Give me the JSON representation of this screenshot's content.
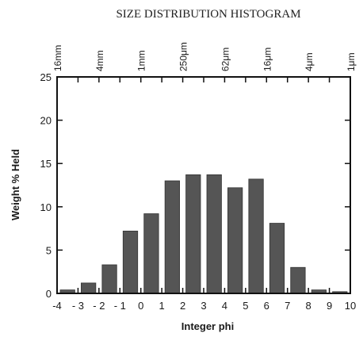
{
  "chart_data": {
    "type": "bar",
    "title": "SIZE DISTRIBUTION HISTOGRAM",
    "xlabel": "Integer phi",
    "ylabel": "Weight % Held",
    "xlim": [
      -4,
      10
    ],
    "ylim": [
      0,
      25
    ],
    "x_ticks": [
      -4,
      -3,
      -2,
      -1,
      0,
      1,
      2,
      3,
      4,
      5,
      6,
      7,
      8,
      9,
      10
    ],
    "x_tick_labels": [
      "-4",
      "- 3",
      "- 2",
      "- 1",
      "0",
      "1",
      "2",
      "3",
      "4",
      "5",
      "6",
      "7",
      "8",
      "9",
      "10"
    ],
    "y_ticks": [
      0,
      5,
      10,
      15,
      20,
      25
    ],
    "y_tick_labels": [
      "0",
      "5",
      "10",
      "15",
      "20",
      "25"
    ],
    "top_axis": {
      "labels": [
        {
          "x": -4,
          "text": "16mm"
        },
        {
          "x": -2,
          "text": "4mm"
        },
        {
          "x": 0,
          "text": "1mm"
        },
        {
          "x": 2,
          "text": "250μm"
        },
        {
          "x": 4,
          "text": "62μm"
        },
        {
          "x": 6,
          "text": "16μm"
        },
        {
          "x": 8,
          "text": "4μm"
        },
        {
          "x": 10,
          "text": "1μm"
        }
      ]
    },
    "bars": [
      {
        "from": -4,
        "to": -3,
        "value": 0.4
      },
      {
        "from": -3,
        "to": -2,
        "value": 1.2
      },
      {
        "from": -2,
        "to": -1,
        "value": 3.3
      },
      {
        "from": -1,
        "to": 0,
        "value": 7.2
      },
      {
        "from": 0,
        "to": 1,
        "value": 9.2
      },
      {
        "from": 1,
        "to": 2,
        "value": 13.0
      },
      {
        "from": 2,
        "to": 3,
        "value": 13.7
      },
      {
        "from": 3,
        "to": 4,
        "value": 13.7
      },
      {
        "from": 4,
        "to": 5,
        "value": 12.2
      },
      {
        "from": 5,
        "to": 6,
        "value": 13.2
      },
      {
        "from": 6,
        "to": 7,
        "value": 8.1
      },
      {
        "from": 7,
        "to": 8,
        "value": 3.0
      },
      {
        "from": 8,
        "to": 9,
        "value": 0.4
      },
      {
        "from": 9,
        "to": 10,
        "value": 0.2
      }
    ],
    "colors": {
      "bar": "#555555",
      "frame": "#111111"
    },
    "grid": false,
    "legend": "none"
  }
}
